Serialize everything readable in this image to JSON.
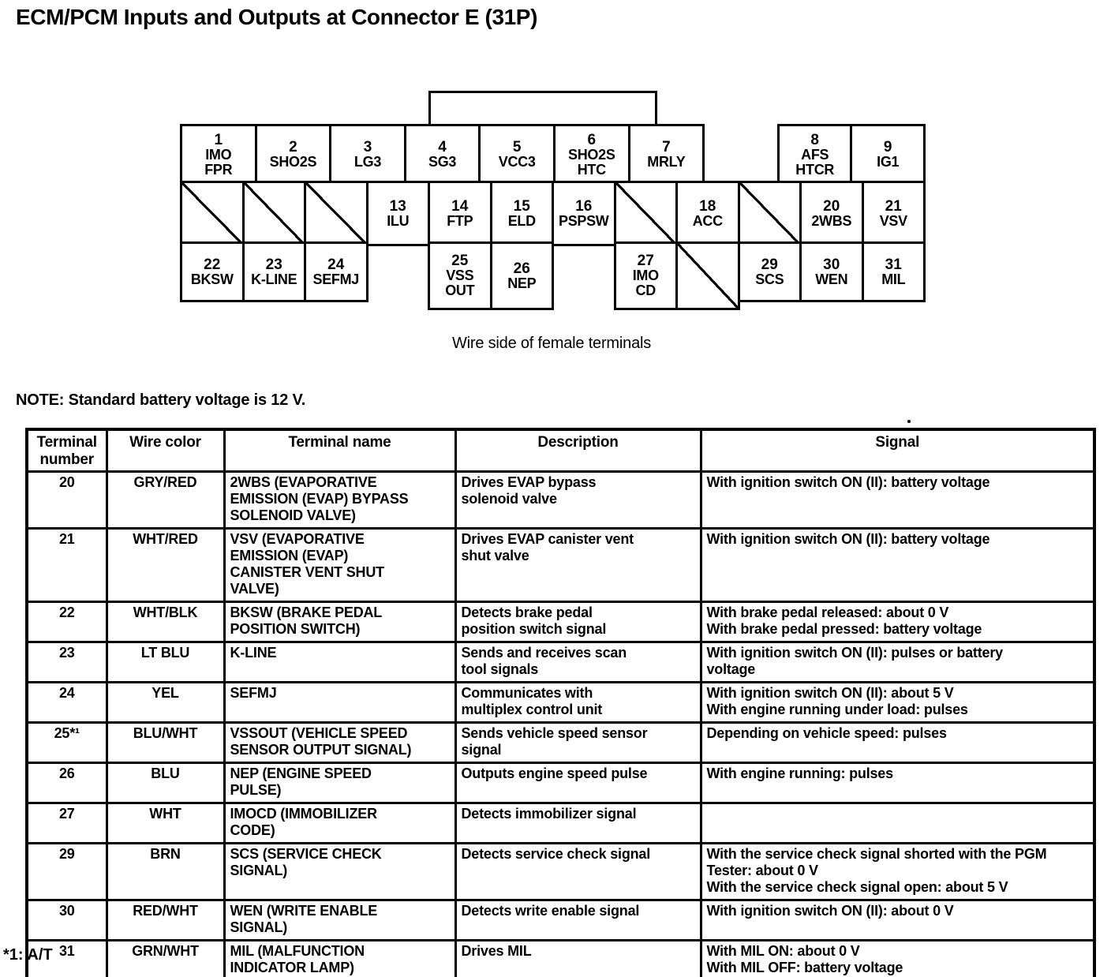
{
  "page": {
    "title": "ECM/PCM Inputs and Outputs at Connector E (31P)",
    "caption": "Wire side of female terminals",
    "note": "NOTE: Standard battery voltage is 12 V.",
    "footnote": "*1: A/T"
  },
  "colors": {
    "ink": "#000000",
    "paper": "#ffffff"
  },
  "connector": {
    "rows": [
      {
        "name": "top",
        "cells": [
          {
            "num": "1",
            "label": [
              "IMO",
              "FPR"
            ]
          },
          {
            "num": "2",
            "label": [
              "SHO2S"
            ]
          },
          {
            "num": "3",
            "label": [
              "LG3"
            ]
          },
          {
            "num": "4",
            "label": [
              "SG3"
            ]
          },
          {
            "num": "5",
            "label": [
              "VCC3"
            ]
          },
          {
            "num": "6",
            "label": [
              "SHO2S",
              "HTC"
            ]
          },
          {
            "num": "7",
            "label": [
              "MRLY"
            ]
          },
          {
            "type": "gap"
          },
          {
            "num": "8",
            "label": [
              "AFS",
              "HTCR"
            ]
          },
          {
            "num": "9",
            "label": [
              "IG1"
            ]
          }
        ]
      },
      {
        "name": "middle",
        "cells": [
          {
            "type": "slash"
          },
          {
            "type": "slash"
          },
          {
            "type": "slash"
          },
          {
            "num": "13",
            "label": [
              "ILU"
            ]
          },
          {
            "num": "14",
            "label": [
              "FTP"
            ]
          },
          {
            "num": "15",
            "label": [
              "ELD"
            ]
          },
          {
            "num": "16",
            "label": [
              "PSPSW"
            ]
          },
          {
            "type": "slash"
          },
          {
            "num": "18",
            "label": [
              "ACC"
            ]
          },
          {
            "type": "slash"
          },
          {
            "num": "20",
            "label": [
              "2WBS"
            ]
          },
          {
            "num": "21",
            "label": [
              "VSV"
            ]
          }
        ]
      },
      {
        "name": "bottom",
        "cells": [
          {
            "num": "22",
            "label": [
              "BKSW"
            ]
          },
          {
            "num": "23",
            "label": [
              "K-LINE"
            ]
          },
          {
            "num": "24",
            "label": [
              "SEFMJ"
            ]
          },
          {
            "type": "gap"
          },
          {
            "num": "25",
            "label": [
              "VSS",
              "OUT"
            ],
            "tall": true
          },
          {
            "num": "26",
            "label": [
              "NEP"
            ],
            "tall": true
          },
          {
            "type": "gap"
          },
          {
            "num": "27",
            "label": [
              "IMO",
              "CD"
            ],
            "tall": true
          },
          {
            "type": "slash",
            "tall": true
          },
          {
            "num": "29",
            "label": [
              "SCS"
            ]
          },
          {
            "num": "30",
            "label": [
              "WEN"
            ]
          },
          {
            "num": "31",
            "label": [
              "MIL"
            ]
          }
        ]
      }
    ]
  },
  "table": {
    "headers": [
      "Terminal number",
      "Wire color",
      "Terminal name",
      "Description",
      "Signal"
    ],
    "rows": [
      {
        "terminal": "20",
        "wire_color": "GRY/RED",
        "terminal_name": [
          "2WBS (EVAPORATIVE",
          "EMISSION (EVAP) BYPASS",
          "SOLENOID VALVE)"
        ],
        "description": [
          "Drives EVAP bypass",
          "solenoid valve"
        ],
        "signal": [
          "With ignition switch ON (II): battery voltage"
        ]
      },
      {
        "terminal": "21",
        "wire_color": "WHT/RED",
        "terminal_name": [
          "VSV (EVAPORATIVE",
          "EMISSION (EVAP)",
          "CANISTER VENT SHUT",
          "VALVE)"
        ],
        "description": [
          "Drives EVAP canister vent",
          "shut valve"
        ],
        "signal": [
          "With ignition switch ON (II): battery voltage"
        ]
      },
      {
        "terminal": "22",
        "wire_color": "WHT/BLK",
        "terminal_name": [
          "BKSW (BRAKE PEDAL",
          "POSITION SWITCH)"
        ],
        "description": [
          "Detects brake pedal",
          "position switch signal"
        ],
        "signal": [
          "With brake pedal released: about 0 V",
          "With brake pedal pressed: battery voltage"
        ]
      },
      {
        "terminal": "23",
        "wire_color": "LT BLU",
        "terminal_name": [
          "K-LINE"
        ],
        "description": [
          "Sends and receives scan",
          "tool signals"
        ],
        "signal": [
          "With ignition switch ON (II): pulses or battery",
          "voltage"
        ]
      },
      {
        "terminal": "24",
        "wire_color": "YEL",
        "terminal_name": [
          "SEFMJ"
        ],
        "description": [
          "Communicates with",
          "multiplex control unit"
        ],
        "signal": [
          "With ignition switch ON (II): about 5 V",
          "With engine running under load: pulses"
        ]
      },
      {
        "terminal": "25*¹",
        "wire_color": "BLU/WHT",
        "terminal_name": [
          "VSSOUT (VEHICLE SPEED",
          "SENSOR OUTPUT SIGNAL)"
        ],
        "description": [
          "Sends vehicle speed sensor",
          "signal"
        ],
        "signal": [
          "Depending on vehicle speed: pulses"
        ]
      },
      {
        "terminal": "26",
        "wire_color": "BLU",
        "terminal_name": [
          "NEP (ENGINE SPEED",
          "PULSE)"
        ],
        "description": [
          "Outputs engine speed pulse"
        ],
        "signal": [
          "With engine running: pulses"
        ]
      },
      {
        "terminal": "27",
        "wire_color": "WHT",
        "terminal_name": [
          "IMOCD (IMMOBILIZER",
          "CODE)"
        ],
        "description": [
          "Detects immobilizer signal"
        ],
        "signal": []
      },
      {
        "terminal": "29",
        "wire_color": "BRN",
        "terminal_name": [
          "SCS (SERVICE CHECK",
          "SIGNAL)"
        ],
        "description": [
          "Detects service check signal"
        ],
        "signal": [
          "With the service check signal shorted with the PGM",
          "Tester: about 0 V",
          "With the service check signal open: about 5 V"
        ]
      },
      {
        "terminal": "30",
        "wire_color": "RED/WHT",
        "terminal_name": [
          "WEN (WRITE ENABLE",
          "SIGNAL)"
        ],
        "description": [
          "Detects write enable signal"
        ],
        "signal": [
          "With ignition switch ON (II): about 0 V"
        ]
      },
      {
        "terminal": "31",
        "wire_color": "GRN/WHT",
        "terminal_name": [
          "MIL (MALFUNCTION",
          "INDICATOR LAMP)"
        ],
        "description": [
          "Drives MIL"
        ],
        "signal": [
          "With MIL ON: about 0 V",
          "With MIL OFF: battery voltage"
        ]
      }
    ]
  }
}
